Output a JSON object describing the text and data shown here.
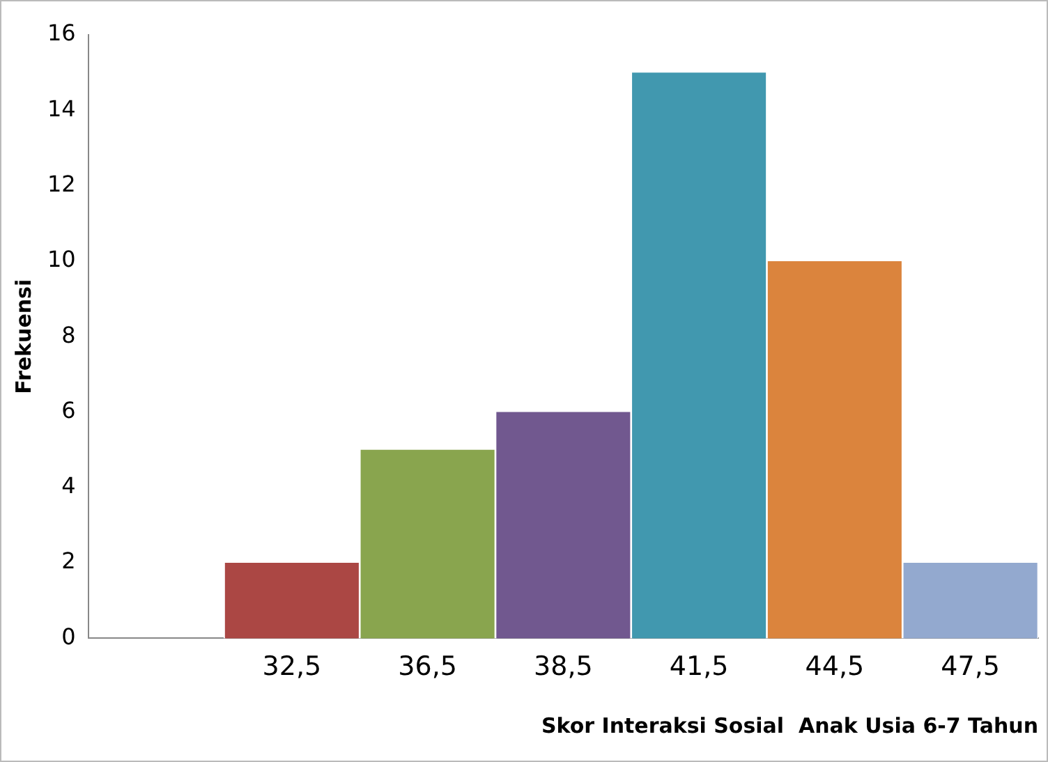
{
  "chart_data": {
    "type": "bar",
    "xlabel": "Skor Interaksi Sosial  Anak Usia 6-7 Tahun",
    "ylabel": "Frekuensi",
    "categories": [
      null,
      "32,5",
      "36,5",
      "38,5",
      "41,5",
      "44,5",
      "47,5"
    ],
    "values": [
      null,
      2,
      5,
      6,
      15,
      10,
      2
    ],
    "colors": [
      "#ab4744",
      "#ab4744",
      "#89a54e",
      "#71588f",
      "#4198af",
      "#db843d",
      "#93a9cf"
    ],
    "ylim": [
      0,
      16
    ],
    "yticks": [
      0,
      2,
      4,
      6,
      8,
      10,
      12,
      14,
      16
    ],
    "grid": false,
    "legend": false
  }
}
